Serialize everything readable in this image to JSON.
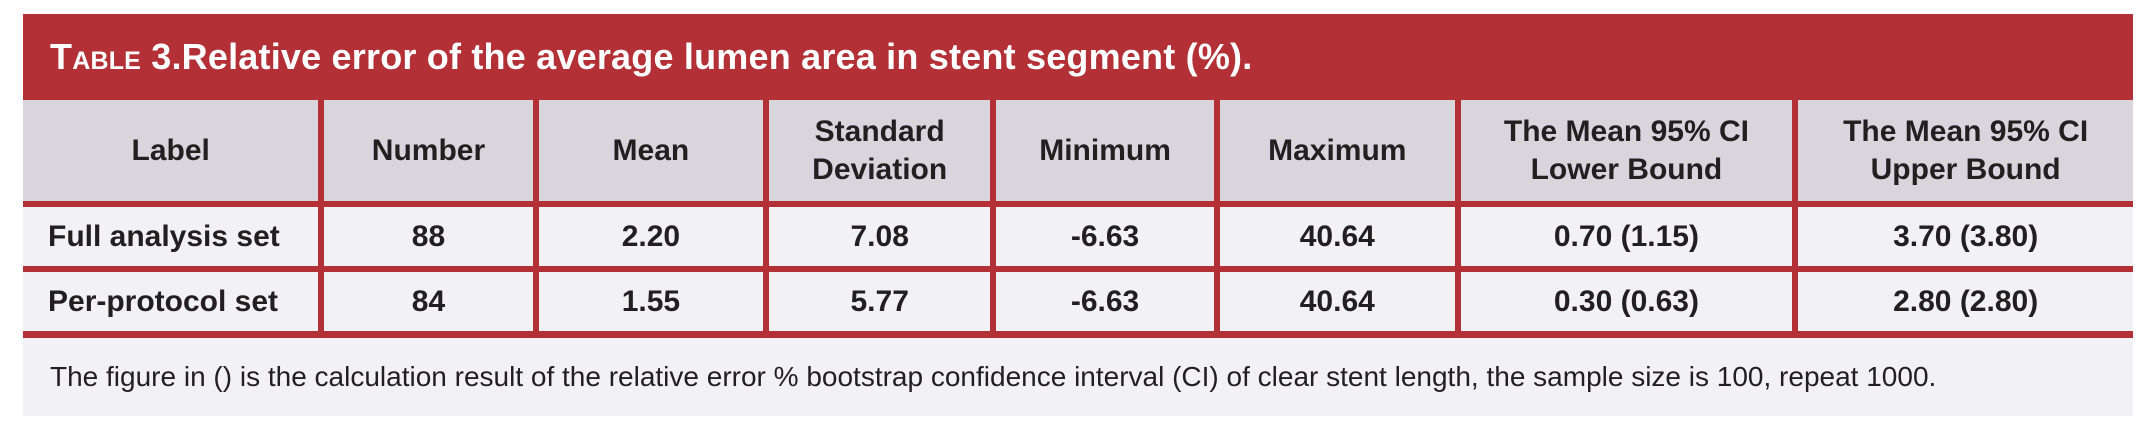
{
  "title": {
    "prefix": "Table 3.",
    "rest": " Relative error of the average lumen area in stent segment (%)."
  },
  "table": {
    "columns": [
      "Label",
      "Number",
      "Mean",
      "Standard\nDeviation",
      "Minimum",
      "Maximum",
      "The Mean 95% CI\nLower Bound",
      "The Mean 95% CI\nUpper Bound"
    ],
    "rows": [
      {
        "label": "Full analysis set",
        "number": "88",
        "mean": "2.20",
        "sd": "7.08",
        "min": "-6.63",
        "max": "40.64",
        "ci_lower": "0.70 (1.15)",
        "ci_upper": "3.70 (3.80)"
      },
      {
        "label": "Per-protocol set",
        "number": "84",
        "mean": "1.55",
        "sd": "5.77",
        "min": "-6.63",
        "max": "40.64",
        "ci_lower": "0.30 (0.63)",
        "ci_upper": "2.80 (2.80)"
      }
    ]
  },
  "footnote": "The figure in () is the calculation result of the relative error % bootstrap confidence interval (CI) of clear stent length, the sample size is 100, repeat 1000.",
  "colors": {
    "accent_red": "#B23036",
    "header_bg": "#D8D5DD",
    "row_bg": "#F2F1F4",
    "text": "#231F20",
    "title_text": "#FFFFFF"
  },
  "chart_data": {
    "type": "table",
    "title": "TABLE 3. Relative error of the average lumen area in stent segment (%).",
    "columns": [
      "Label",
      "Number",
      "Mean",
      "Standard Deviation",
      "Minimum",
      "Maximum",
      "The Mean 95% CI Lower Bound",
      "The Mean 95% CI Upper Bound"
    ],
    "rows": [
      [
        "Full analysis set",
        88,
        2.2,
        7.08,
        -6.63,
        40.64,
        "0.70 (1.15)",
        "3.70 (3.80)"
      ],
      [
        "Per-protocol set",
        84,
        1.55,
        5.77,
        -6.63,
        40.64,
        "0.30 (0.63)",
        "2.80 (2.80)"
      ]
    ],
    "footnote": "The figure in () is the calculation result of the relative error % bootstrap confidence interval (CI) of clear stent length, the sample size is 100, repeat 1000."
  }
}
